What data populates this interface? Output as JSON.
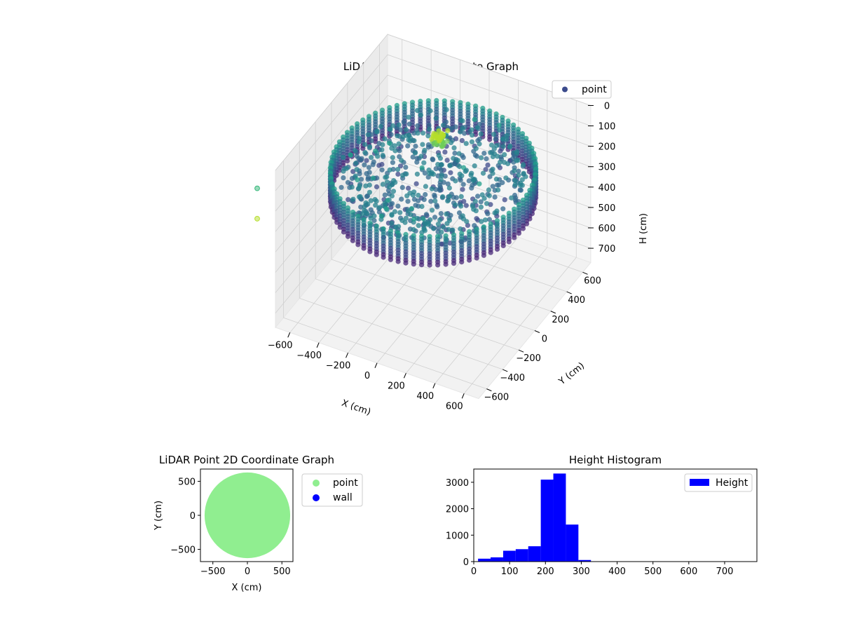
{
  "figure": {
    "background": "#ffffff"
  },
  "chart_data": [
    {
      "type": "scatter",
      "subtype": "3d",
      "title": "LiDAR Point 3D Coordinate Graph",
      "xlabel": "X (cm)",
      "ylabel": "Y (cm)",
      "zlabel": "H (cm)",
      "xlim": [
        -700,
        700
      ],
      "ylim": [
        -700,
        700
      ],
      "zlim": [
        770,
        0
      ],
      "xticks": [
        -600,
        -400,
        -200,
        0,
        200,
        400,
        600
      ],
      "yticks": [
        -600,
        -400,
        -200,
        0,
        200,
        400,
        600
      ],
      "zticks": [
        0,
        100,
        200,
        300,
        400,
        500,
        600,
        700
      ],
      "z_inverted": true,
      "grid": true,
      "colormap": "viridis",
      "legend": {
        "position": "top-right",
        "entries": [
          {
            "label": "point",
            "color": "#3b4b8c"
          }
        ]
      },
      "series": [
        {
          "name": "point",
          "description_ring_radius_cm": 620,
          "height_range_cm": [
            150,
            300
          ]
        }
      ],
      "outliers": [
        {
          "x": -700,
          "y": -700,
          "h": 150
        },
        {
          "x": -700,
          "y": -700,
          "h": 230
        }
      ]
    },
    {
      "type": "scatter",
      "title": "LiDAR Point 2D Coordinate Graph",
      "xlabel": "X (cm)",
      "ylabel": "Y (cm)",
      "xlim": [
        -680,
        660
      ],
      "ylim": [
        -680,
        680
      ],
      "xticks": [
        -500,
        0,
        500
      ],
      "yticks": [
        -500,
        0,
        500
      ],
      "legend": {
        "position": "outside-right",
        "entries": [
          {
            "label": "point",
            "color": "#90ee90"
          },
          {
            "label": "wall",
            "color": "#0000ff"
          }
        ]
      },
      "series": [
        {
          "name": "point",
          "color": "#90ee90",
          "shape": "filled disk",
          "center": [
            0,
            0
          ],
          "radius": 620
        }
      ]
    },
    {
      "type": "bar",
      "subtype": "histogram",
      "title": "Height Histogram",
      "xlabel": "",
      "ylabel": "",
      "xlim": [
        0,
        790
      ],
      "ylim": [
        0,
        3500
      ],
      "xticks": [
        0,
        100,
        200,
        300,
        400,
        500,
        600,
        700
      ],
      "yticks": [
        0,
        1000,
        2000,
        3000
      ],
      "bar_color": "#0000ff",
      "legend": {
        "position": "top-right",
        "entries": [
          {
            "label": "Height",
            "color": "#0000ff"
          }
        ]
      },
      "bins": [
        {
          "x0": 12,
          "x1": 47,
          "count": 110
        },
        {
          "x0": 47,
          "x1": 82,
          "count": 160
        },
        {
          "x0": 82,
          "x1": 117,
          "count": 410
        },
        {
          "x0": 117,
          "x1": 152,
          "count": 470
        },
        {
          "x0": 152,
          "x1": 187,
          "count": 580
        },
        {
          "x0": 187,
          "x1": 222,
          "count": 3100
        },
        {
          "x0": 222,
          "x1": 257,
          "count": 3330
        },
        {
          "x0": 257,
          "x1": 292,
          "count": 1400
        },
        {
          "x0": 292,
          "x1": 327,
          "count": 60
        },
        {
          "x0": 327,
          "x1": 362,
          "count": 8
        },
        {
          "x0": 362,
          "x1": 397,
          "count": 4
        },
        {
          "x0": 397,
          "x1": 432,
          "count": 3
        },
        {
          "x0": 432,
          "x1": 467,
          "count": 2
        },
        {
          "x0": 467,
          "x1": 502,
          "count": 2
        },
        {
          "x0": 502,
          "x1": 537,
          "count": 1
        },
        {
          "x0": 537,
          "x1": 572,
          "count": 1
        },
        {
          "x0": 572,
          "x1": 607,
          "count": 1
        },
        {
          "x0": 607,
          "x1": 642,
          "count": 1
        },
        {
          "x0": 642,
          "x1": 677,
          "count": 1
        },
        {
          "x0": 677,
          "x1": 712,
          "count": 1
        },
        {
          "x0": 712,
          "x1": 747,
          "count": 1
        },
        {
          "x0": 747,
          "x1": 782,
          "count": 1
        }
      ]
    }
  ]
}
